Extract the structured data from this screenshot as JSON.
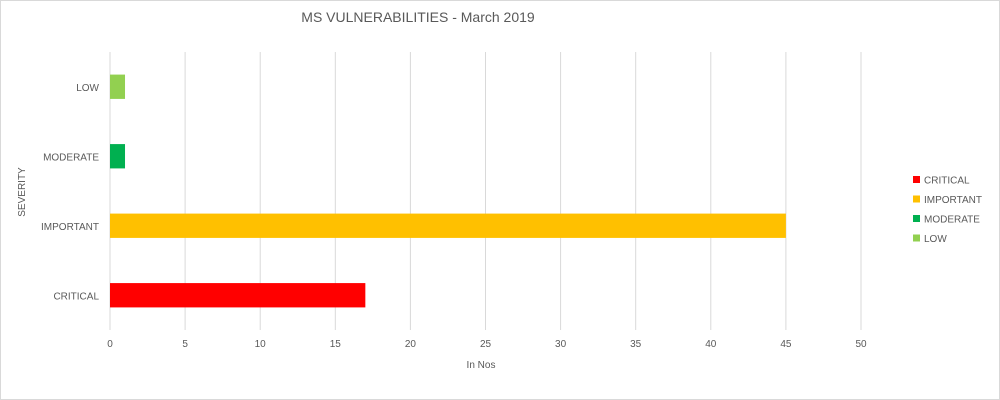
{
  "chart_data": {
    "type": "bar",
    "orientation": "horizontal",
    "title": "MS VULNERABILITIES - March 2019",
    "xlabel": "In Nos",
    "ylabel": "SEVERITY",
    "categories": [
      "CRITICAL",
      "IMPORTANT",
      "MODERATE",
      "LOW"
    ],
    "values": [
      17,
      45,
      1,
      1
    ],
    "colors": [
      "#ff0000",
      "#ffc000",
      "#00b050",
      "#92d050"
    ],
    "xlim": [
      0,
      50
    ],
    "x_ticks": [
      0,
      5,
      10,
      15,
      20,
      25,
      30,
      35,
      40,
      45,
      50
    ],
    "grid": "vertical",
    "legend": {
      "position": "right",
      "entries": [
        "CRITICAL",
        "IMPORTANT",
        "MODERATE",
        "LOW"
      ]
    }
  }
}
